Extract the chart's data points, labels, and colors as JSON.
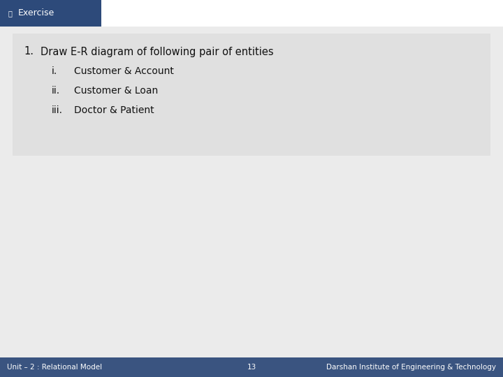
{
  "bg_color": "#ffffff",
  "slide_bg": "#ebebeb",
  "header_bg": "#2d4a7a",
  "header_text": "Exercise",
  "header_text_color": "#ffffff",
  "footer_bg": "#3a5480",
  "footer_text_color": "#ffffff",
  "footer_left": "Unit – 2 : Relational Model",
  "footer_center": "13",
  "footer_right": "Darshan Institute of Engineering & Technology",
  "main_text_color": "#111111",
  "content_box_bg": "#e0e0e0",
  "title_line": "Draw E-R diagram of following pair of entities",
  "sub_items": [
    {
      "label": "i.",
      "text": "Customer & Account"
    },
    {
      "label": "ii.",
      "text": "Customer & Loan"
    },
    {
      "label": "iii.",
      "text": "Doctor & Patient"
    }
  ],
  "number_label": "1.",
  "font_size_header": 9,
  "font_size_title": 10.5,
  "font_size_sub": 10,
  "font_size_footer": 7.5
}
